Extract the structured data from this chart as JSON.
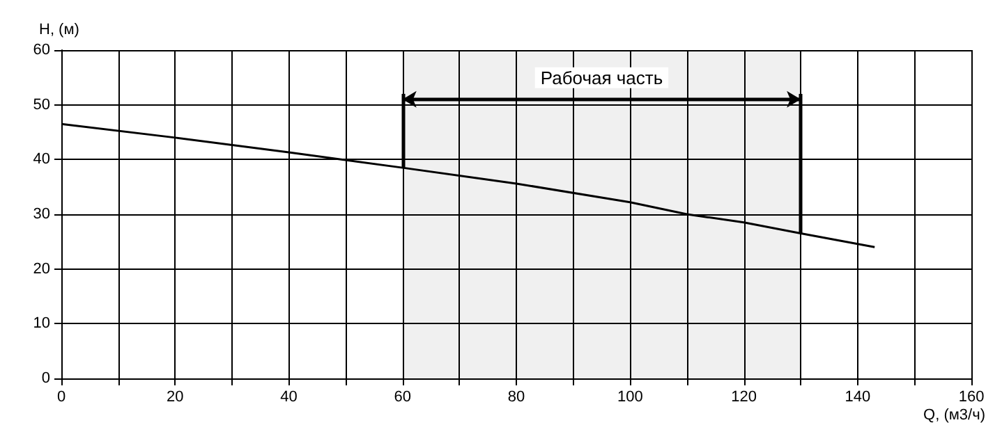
{
  "chart_data": {
    "type": "line",
    "ylabel": "H, (м)",
    "xlabel": "Q, (м3/ч)",
    "x": [
      0,
      20,
      40,
      60,
      80,
      100,
      110,
      120,
      130,
      143
    ],
    "series": [
      {
        "color": "#000000",
        "values": [
          46.5,
          44,
          41.3,
          38.5,
          35.6,
          32.2,
          30,
          28.5,
          26.5,
          24
        ]
      }
    ],
    "xlim": [
      0,
      160
    ],
    "xticks": [
      0,
      {
        "value": 10,
        "label": null
      },
      20,
      {
        "value": 30,
        "label": null
      },
      40,
      {
        "value": 50,
        "label": null
      },
      60,
      {
        "value": 70,
        "label": null
      },
      80,
      {
        "value": 90,
        "label": null
      },
      100,
      {
        "value": 110,
        "label": null
      },
      120,
      {
        "value": 130,
        "label": null
      },
      140,
      {
        "value": 150,
        "label": null
      },
      160
    ],
    "ylim": [
      0,
      60
    ],
    "yticks": [
      0,
      10,
      20,
      30,
      40,
      50,
      60
    ],
    "bands": [
      {
        "axis": "x",
        "from": 60,
        "to": 130,
        "label": "Рабочая часть"
      }
    ],
    "grid": true,
    "marker": "none",
    "line_style": "solid"
  }
}
